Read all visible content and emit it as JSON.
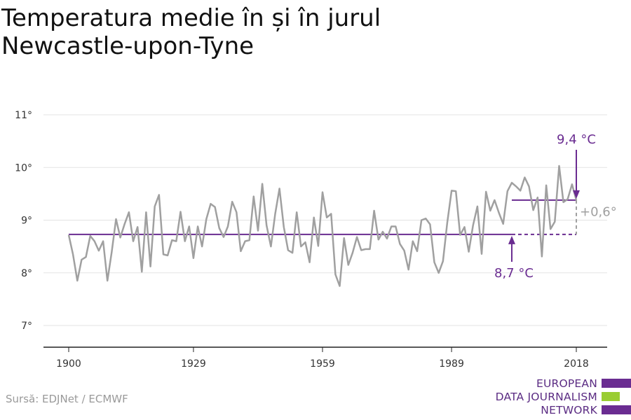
{
  "title_lines": [
    "Temperatura medie în și în jurul",
    "Newcastle-upon-Tyne"
  ],
  "source": "Sursă: EDJNet / ECMWF",
  "logo": {
    "lines": [
      "EUROPEAN",
      "DATA JOURNALISM",
      "NETWORK"
    ],
    "colors": {
      "purple": "#6a2c91",
      "green": "#9acd32"
    }
  },
  "colors": {
    "series": "#a0a0a0",
    "accent": "#6a2c91",
    "annotation_gray": "#a0a0a0",
    "grid": "#e3e3e3",
    "axis": "#222222"
  },
  "chart_data": {
    "type": "line",
    "title": "Temperatura medie în și în jurul Newcastle-upon-Tyne",
    "xlabel": "",
    "ylabel": "",
    "x_ticks": [
      1900,
      1929,
      1959,
      1989,
      2018
    ],
    "y_ticks": [
      7,
      8,
      9,
      10,
      11
    ],
    "y_tick_labels": [
      "7°",
      "8°",
      "9°",
      "10°",
      "11°"
    ],
    "xlim": [
      1900,
      2018
    ],
    "ylim": [
      6.6,
      11.2
    ],
    "grid": true,
    "series": [
      {
        "x": [
          1900,
          1901,
          1902,
          1903,
          1904,
          1905,
          1906,
          1907,
          1908,
          1909,
          1910,
          1911,
          1912,
          1913,
          1914,
          1915,
          1916,
          1917,
          1918,
          1919,
          1920,
          1921,
          1922,
          1923,
          1924,
          1925,
          1926,
          1927,
          1928,
          1929,
          1930,
          1931,
          1932,
          1933,
          1934,
          1935,
          1936,
          1937,
          1938,
          1939,
          1940,
          1941,
          1942,
          1943,
          1944,
          1945,
          1946,
          1947,
          1948,
          1949,
          1950,
          1951,
          1952,
          1953,
          1954,
          1955,
          1956,
          1957,
          1958,
          1959,
          1960,
          1961,
          1962,
          1963,
          1964,
          1965,
          1966,
          1967,
          1968,
          1969,
          1970,
          1971,
          1972,
          1973,
          1974,
          1975,
          1976,
          1977,
          1978,
          1979,
          1980,
          1981,
          1982,
          1983,
          1984,
          1985,
          1986,
          1987,
          1988,
          1989,
          1990,
          1991,
          1992,
          1993,
          1994,
          1995,
          1996,
          1997,
          1998,
          1999,
          2000,
          2001,
          2002,
          2003,
          2004,
          2005,
          2006,
          2007,
          2008,
          2009,
          2010,
          2011,
          2012,
          2013,
          2014,
          2015,
          2016,
          2017,
          2018
        ],
        "values": [
          8.72,
          8.35,
          7.85,
          8.25,
          8.3,
          8.7,
          8.6,
          8.42,
          8.6,
          7.85,
          8.4,
          9.02,
          8.67,
          8.93,
          9.15,
          8.6,
          8.87,
          8.02,
          9.15,
          8.12,
          9.26,
          9.48,
          8.35,
          8.33,
          8.62,
          8.6,
          9.16,
          8.6,
          8.88,
          8.28,
          8.88,
          8.5,
          9.02,
          9.31,
          9.25,
          8.85,
          8.68,
          8.88,
          9.35,
          9.15,
          8.41,
          8.6,
          8.62,
          9.45,
          8.8,
          9.69,
          8.9,
          8.5,
          9.12,
          9.6,
          8.87,
          8.43,
          8.38,
          9.15,
          8.5,
          8.58,
          8.2,
          9.05,
          8.51,
          9.53,
          9.05,
          9.12,
          7.97,
          7.75,
          8.66,
          8.15,
          8.38,
          8.68,
          8.43,
          8.45,
          8.45,
          9.18,
          8.63,
          8.78,
          8.65,
          8.88,
          8.88,
          8.55,
          8.42,
          8.06,
          8.6,
          8.41,
          9.0,
          9.03,
          8.92,
          8.2,
          8.0,
          8.22,
          8.95,
          9.56,
          9.55,
          8.72,
          8.87,
          8.4,
          8.9,
          9.26,
          8.36,
          9.54,
          9.18,
          9.38,
          9.14,
          8.93,
          9.55,
          9.71,
          9.64,
          9.56,
          9.81,
          9.64,
          9.19,
          9.43,
          8.31,
          9.66,
          8.83,
          8.97,
          10.03,
          9.34,
          9.4,
          9.68,
          9.38
        ]
      }
    ],
    "reference_lines": [
      {
        "label": "8,7 °C",
        "value": 8.73,
        "from": 1900,
        "to": 2018
      },
      {
        "label": "9,4 °C",
        "value": 9.38,
        "from": 2003,
        "to": 2018
      }
    ],
    "difference_label": "+0,6°",
    "annotations": [
      "9,4 °C",
      "8,7 °C",
      "+0,6°"
    ]
  }
}
